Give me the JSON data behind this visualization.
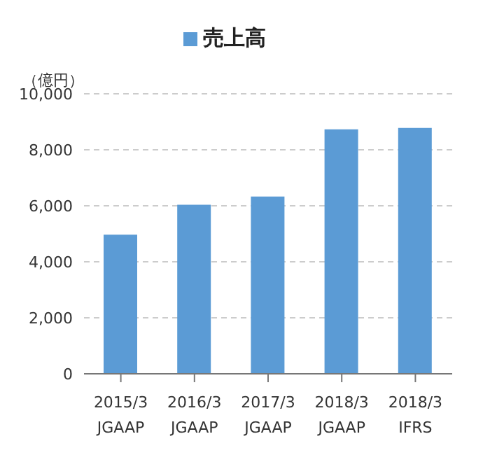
{
  "chart_data": {
    "type": "bar",
    "ylabel": "（億円）",
    "categories": [
      "2015/3\nJGAAP",
      "2016/3\nJGAAP",
      "2017/3\nJGAAP",
      "2018/3\nJGAAP",
      "2018/3\nIFRS"
    ],
    "series": [
      {
        "name": "売上高",
        "color": "#5b9bd5",
        "values": [
          4970,
          6040,
          6330,
          8730,
          8780
        ]
      }
    ],
    "ylim": [
      0,
      10000
    ],
    "yticks": [
      {
        "value": 0,
        "label": "0"
      },
      {
        "value": 2000,
        "label": "2,000"
      },
      {
        "value": 4000,
        "label": "4,000"
      },
      {
        "value": 6000,
        "label": "6,000"
      },
      {
        "value": 8000,
        "label": "8,000"
      },
      {
        "value": 10000,
        "label": "10,000"
      }
    ],
    "grid": "y",
    "legend": "top"
  }
}
